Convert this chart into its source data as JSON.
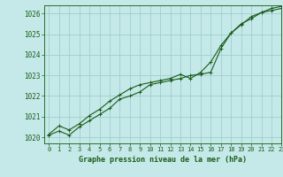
{
  "title": "Graphe pression niveau de la mer (hPa)",
  "background_color": "#c5e8e8",
  "grid_color": "#9fcfcf",
  "line_color": "#1a5c1a",
  "spine_color": "#2a6e2a",
  "xlim": [
    -0.5,
    23
  ],
  "ylim": [
    1019.7,
    1026.4
  ],
  "yticks": [
    1020,
    1021,
    1022,
    1023,
    1024,
    1025,
    1026
  ],
  "xticks": [
    0,
    1,
    2,
    3,
    4,
    5,
    6,
    7,
    8,
    9,
    10,
    11,
    12,
    13,
    14,
    15,
    16,
    17,
    18,
    19,
    20,
    21,
    22,
    23
  ],
  "line1_x": [
    0,
    1,
    2,
    3,
    4,
    5,
    6,
    7,
    8,
    9,
    10,
    11,
    12,
    13,
    14,
    15,
    16,
    17,
    18,
    19,
    20,
    21,
    22,
    23
  ],
  "line1_y": [
    1020.1,
    1020.3,
    1020.1,
    1020.5,
    1020.8,
    1021.1,
    1021.4,
    1021.85,
    1022.0,
    1022.2,
    1022.55,
    1022.65,
    1022.75,
    1022.85,
    1023.0,
    1023.05,
    1023.15,
    1024.3,
    1025.05,
    1025.5,
    1025.75,
    1026.05,
    1026.15,
    1026.25
  ],
  "line2_x": [
    0,
    1,
    2,
    3,
    4,
    5,
    6,
    7,
    8,
    9,
    10,
    11,
    12,
    13,
    14,
    15,
    16,
    17,
    18,
    19,
    20,
    21,
    22,
    23
  ],
  "line2_y": [
    1020.15,
    1020.55,
    1020.35,
    1020.65,
    1021.05,
    1021.35,
    1021.75,
    1022.05,
    1022.35,
    1022.55,
    1022.65,
    1022.75,
    1022.85,
    1023.05,
    1022.85,
    1023.15,
    1023.65,
    1024.45,
    1025.05,
    1025.45,
    1025.85,
    1026.05,
    1026.25,
    1026.35
  ]
}
